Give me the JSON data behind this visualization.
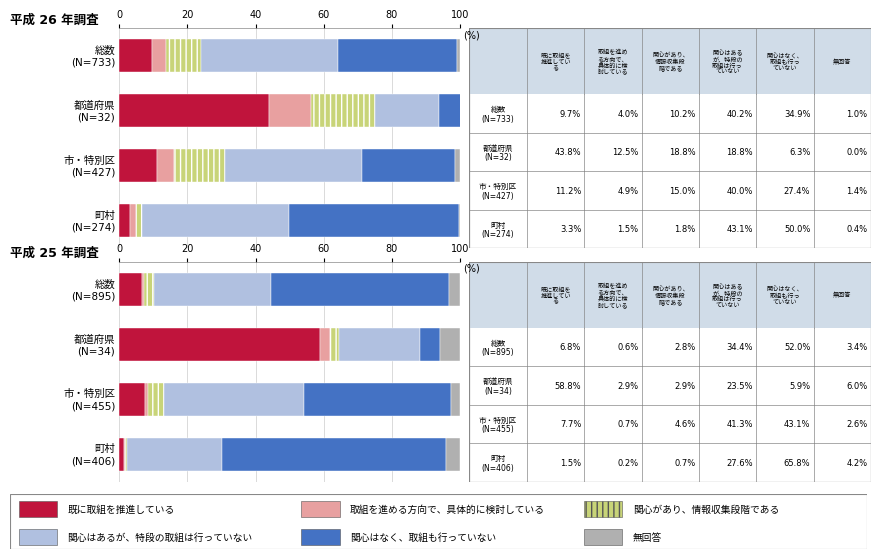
{
  "title_h26": "平成 26 年調査",
  "title_h25": "平成 25 年調査",
  "categories_h26": [
    "総数\n(N=733)",
    "都道府県\n(N=32)",
    "市・特別区\n(N=427)",
    "町村\n(N=274)"
  ],
  "categories_h25": [
    "総数\n(N=895)",
    "都道府県\n(N=34)",
    "市・特別区\n(N=455)",
    "町村\n(N=406)"
  ],
  "h26_data": [
    [
      9.7,
      4.0,
      10.2,
      40.2,
      34.9,
      1.0
    ],
    [
      43.8,
      12.5,
      18.8,
      18.8,
      6.3,
      0.0
    ],
    [
      11.2,
      4.9,
      15.0,
      40.0,
      27.4,
      1.4
    ],
    [
      3.3,
      1.5,
      1.8,
      43.1,
      50.0,
      0.4
    ]
  ],
  "h25_data": [
    [
      6.8,
      0.6,
      2.8,
      34.4,
      52.0,
      3.4
    ],
    [
      58.8,
      2.9,
      2.9,
      23.5,
      5.9,
      6.0
    ],
    [
      7.7,
      0.7,
      4.6,
      41.3,
      43.1,
      2.6
    ],
    [
      1.5,
      0.2,
      0.7,
      27.6,
      65.8,
      4.2
    ]
  ],
  "h26_table_rows": [
    "総数\n(N=733)",
    "都道府県\n(N=32)",
    "市・特別区\n(N=427)",
    "町村\n(N=274)"
  ],
  "h25_table_rows": [
    "総数\n(N=895)",
    "都道府県\n(N=34)",
    "市・特別区\n(N=455)",
    "町村\n(N=406)"
  ],
  "table_headers": [
    "既に取組を\n推進してい\nる",
    "取組を進め\nる方向で、\n具体的に検\n討している",
    "関心があり、\n情報収集段\n階である",
    "関心はある\nが、特段の\n取組は行っ\nていない",
    "関心はなく、\n取組も行っ\nていない",
    "無回答"
  ],
  "colors": [
    "#c0143c",
    "#e8a0a0",
    "#c8d478",
    "#b0c0e0",
    "#4472c4",
    "#b0b0b0"
  ],
  "legend_labels": [
    "既に取組を推進している",
    "取組を進める方向で、具体的に検討している",
    "関心があり、情報収集段階である",
    "関心はあるが、特段の取組は行っていない",
    "関心はなく、取組も行っていない",
    "無回答"
  ],
  "table_header_bg": "#d0dce8",
  "table_border_color": "#888888",
  "legend_border_color": "#888888",
  "pct_label": "(%)"
}
